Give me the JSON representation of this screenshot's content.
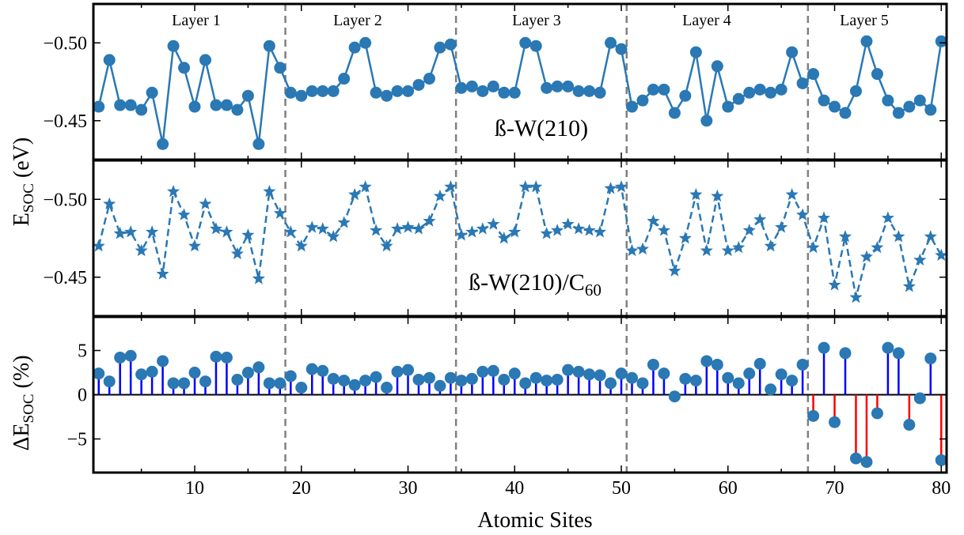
{
  "chart_data": [
    {
      "type": "line",
      "label": "ß-W(210)",
      "layers": [
        "Layer 1",
        "Layer 2",
        "Layer 3",
        "Layer 4",
        "Layer 5"
      ],
      "layer_boundaries": [
        18.5,
        34.5,
        50.5,
        67.5
      ],
      "x": [
        1,
        2,
        3,
        4,
        5,
        6,
        7,
        8,
        9,
        10,
        11,
        12,
        13,
        14,
        15,
        16,
        17,
        18,
        19,
        20,
        21,
        22,
        23,
        24,
        25,
        26,
        27,
        28,
        29,
        30,
        31,
        32,
        33,
        34,
        35,
        36,
        37,
        38,
        39,
        40,
        41,
        42,
        43,
        44,
        45,
        46,
        47,
        48,
        49,
        50,
        51,
        52,
        53,
        54,
        55,
        56,
        57,
        58,
        59,
        60,
        61,
        62,
        63,
        64,
        65,
        66,
        67,
        68,
        69,
        70,
        71,
        72,
        73,
        74,
        75,
        76,
        77,
        78,
        79,
        80
      ],
      "y": [
        -0.459,
        -0.489,
        -0.46,
        -0.46,
        -0.457,
        -0.468,
        -0.435,
        -0.498,
        -0.484,
        -0.459,
        -0.489,
        -0.46,
        -0.46,
        -0.457,
        -0.466,
        -0.435,
        -0.498,
        -0.484,
        -0.468,
        -0.466,
        -0.469,
        -0.469,
        -0.469,
        -0.477,
        -0.497,
        -0.5,
        -0.468,
        -0.466,
        -0.469,
        -0.469,
        -0.473,
        -0.477,
        -0.497,
        -0.499,
        -0.471,
        -0.472,
        -0.469,
        -0.472,
        -0.468,
        -0.468,
        -0.5,
        -0.498,
        -0.471,
        -0.472,
        -0.472,
        -0.469,
        -0.469,
        -0.468,
        -0.5,
        -0.496,
        -0.459,
        -0.463,
        -0.47,
        -0.47,
        -0.455,
        -0.466,
        -0.494,
        -0.45,
        -0.485,
        -0.459,
        -0.464,
        -0.468,
        -0.47,
        -0.468,
        -0.47,
        -0.494,
        -0.474,
        -0.48,
        -0.463,
        -0.459,
        -0.455,
        -0.469,
        -0.501,
        -0.48,
        -0.463,
        -0.455,
        -0.459,
        -0.463,
        -0.457,
        -0.501
      ],
      "ylim": [
        -0.425,
        -0.525
      ],
      "yticks": [
        -0.5,
        -0.45
      ],
      "ytick_labels": [
        "−0.50",
        "−0.45"
      ],
      "marker": "circle",
      "line_style": "solid",
      "color": "#2a78b4"
    },
    {
      "type": "line",
      "label": "ß-W(210)/C",
      "label_sub": "60",
      "x": [
        1,
        2,
        3,
        4,
        5,
        6,
        7,
        8,
        9,
        10,
        11,
        12,
        13,
        14,
        15,
        16,
        17,
        18,
        19,
        20,
        21,
        22,
        23,
        24,
        25,
        26,
        27,
        28,
        29,
        30,
        31,
        32,
        33,
        34,
        35,
        36,
        37,
        38,
        39,
        40,
        41,
        42,
        43,
        44,
        45,
        46,
        47,
        48,
        49,
        50,
        51,
        52,
        53,
        54,
        55,
        56,
        57,
        58,
        59,
        60,
        61,
        62,
        63,
        64,
        65,
        66,
        67,
        68,
        69,
        70,
        71,
        72,
        73,
        74,
        75,
        76,
        77,
        78,
        79,
        80
      ],
      "y": [
        -0.47,
        -0.497,
        -0.478,
        -0.479,
        -0.467,
        -0.479,
        -0.452,
        -0.505,
        -0.49,
        -0.47,
        -0.497,
        -0.481,
        -0.479,
        -0.465,
        -0.477,
        -0.449,
        -0.505,
        -0.491,
        -0.479,
        -0.47,
        -0.482,
        -0.481,
        -0.476,
        -0.485,
        -0.503,
        -0.508,
        -0.48,
        -0.47,
        -0.481,
        -0.482,
        -0.481,
        -0.486,
        -0.502,
        -0.508,
        -0.477,
        -0.479,
        -0.481,
        -0.484,
        -0.475,
        -0.479,
        -0.508,
        -0.508,
        -0.478,
        -0.48,
        -0.484,
        -0.481,
        -0.48,
        -0.479,
        -0.507,
        -0.508,
        -0.467,
        -0.468,
        -0.486,
        -0.48,
        -0.454,
        -0.475,
        -0.503,
        -0.467,
        -0.502,
        -0.467,
        -0.469,
        -0.48,
        -0.487,
        -0.47,
        -0.482,
        -0.503,
        -0.49,
        -0.469,
        -0.488,
        -0.445,
        -0.476,
        -0.437,
        -0.463,
        -0.469,
        -0.488,
        -0.476,
        -0.444,
        -0.461,
        -0.476,
        -0.464
      ],
      "ylim": [
        -0.425,
        -0.525
      ],
      "yticks": [
        -0.5,
        -0.45
      ],
      "ytick_labels": [
        "−0.50",
        "−0.45"
      ],
      "marker": "star",
      "line_style": "dashed",
      "color": "#2a78b4"
    },
    {
      "type": "stem",
      "x": [
        1,
        2,
        3,
        4,
        5,
        6,
        7,
        8,
        9,
        10,
        11,
        12,
        13,
        14,
        15,
        16,
        17,
        18,
        19,
        20,
        21,
        22,
        23,
        24,
        25,
        26,
        27,
        28,
        29,
        30,
        31,
        32,
        33,
        34,
        35,
        36,
        37,
        38,
        39,
        40,
        41,
        42,
        43,
        44,
        45,
        46,
        47,
        48,
        49,
        50,
        51,
        52,
        53,
        54,
        55,
        56,
        57,
        58,
        59,
        60,
        61,
        62,
        63,
        64,
        65,
        66,
        67,
        68,
        69,
        70,
        71,
        72,
        73,
        74,
        75,
        76,
        77,
        78,
        79,
        80
      ],
      "y": [
        2.4,
        1.5,
        4.2,
        4.4,
        2.3,
        2.6,
        3.8,
        1.3,
        1.3,
        2.5,
        1.5,
        4.3,
        4.2,
        1.7,
        2.5,
        3.1,
        1.3,
        1.3,
        2.1,
        0.8,
        2.9,
        2.7,
        1.8,
        1.6,
        1.1,
        1.6,
        2.0,
        0.8,
        2.6,
        2.8,
        1.7,
        1.9,
        1.0,
        1.9,
        1.6,
        1.8,
        2.6,
        2.7,
        1.7,
        2.4,
        1.3,
        1.9,
        1.6,
        1.7,
        2.8,
        2.6,
        2.3,
        2.2,
        1.3,
        2.4,
        1.9,
        1.3,
        3.4,
        2.4,
        -0.2,
        1.8,
        1.6,
        3.8,
        3.4,
        1.9,
        1.3,
        2.4,
        3.5,
        0.6,
        2.3,
        1.6,
        3.4,
        -2.4,
        5.3,
        -3.1,
        4.7,
        -7.2,
        -7.6,
        -2.1,
        5.3,
        4.7,
        -3.4,
        -0.4,
        4.1,
        -7.4
      ],
      "ylim": [
        -8.8,
        8.8
      ],
      "yticks": [
        5,
        0,
        -5
      ],
      "ytick_labels": [
        "5",
        "0",
        "−5"
      ],
      "positive_color": "#0000ff",
      "negative_color": "#ff0000",
      "marker_color": "#2a78b4"
    }
  ],
  "axes": {
    "xlim": [
      0.5,
      80.5
    ],
    "xticks": [
      10,
      20,
      30,
      40,
      50,
      60,
      70,
      80
    ],
    "xtick_labels": [
      "10",
      "20",
      "30",
      "40",
      "50",
      "60",
      "70",
      "80"
    ],
    "xlabel": "Atomic Sites",
    "ylabel_top": "E",
    "ylabel_top_sub": "SOC",
    "ylabel_top_unit": " (eV)",
    "ylabel_bottom": "ΔE",
    "ylabel_bottom_sub": "SOC",
    "ylabel_bottom_unit": " (%)"
  }
}
